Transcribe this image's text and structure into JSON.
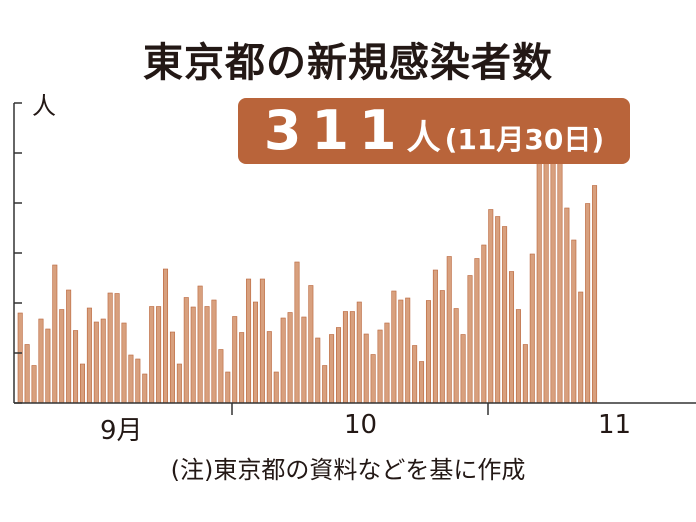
{
  "title": "東京都の新規感染者数",
  "badge": {
    "value": "311",
    "unit": "人",
    "date": "(11月30日)"
  },
  "ylabel": "人",
  "note": "(注)東京都の資料などを基に作成",
  "colors": {
    "bar": "#d8a07e",
    "bar_edge": "#b9643a",
    "badge": "#b9643a",
    "axis": "#333333"
  },
  "chart_data": {
    "type": "bar",
    "title": "東京都の新規感染者数",
    "ylabel": "人",
    "xlabel": "",
    "grid": false,
    "ylim": [
      0,
      600
    ],
    "x_ticks": [
      "9月",
      "10",
      "11"
    ],
    "values": [
      180,
      117,
      75,
      168,
      148,
      276,
      187,
      226,
      145,
      78,
      190,
      162,
      168,
      220,
      219,
      160,
      96,
      88,
      58,
      193,
      193,
      268,
      142,
      78,
      211,
      192,
      234,
      193,
      206,
      107,
      62,
      173,
      141,
      248,
      202,
      248,
      143,
      62,
      170,
      181,
      282,
      172,
      235,
      130,
      75,
      137,
      151,
      183,
      183,
      202,
      138,
      97,
      146,
      160,
      224,
      206,
      210,
      115,
      83,
      205,
      266,
      225,
      293,
      189,
      137,
      255,
      289,
      316,
      387,
      373,
      353,
      263,
      187,
      117,
      298,
      491,
      531,
      520,
      536,
      390,
      326,
      222,
      399,
      435
    ]
  }
}
